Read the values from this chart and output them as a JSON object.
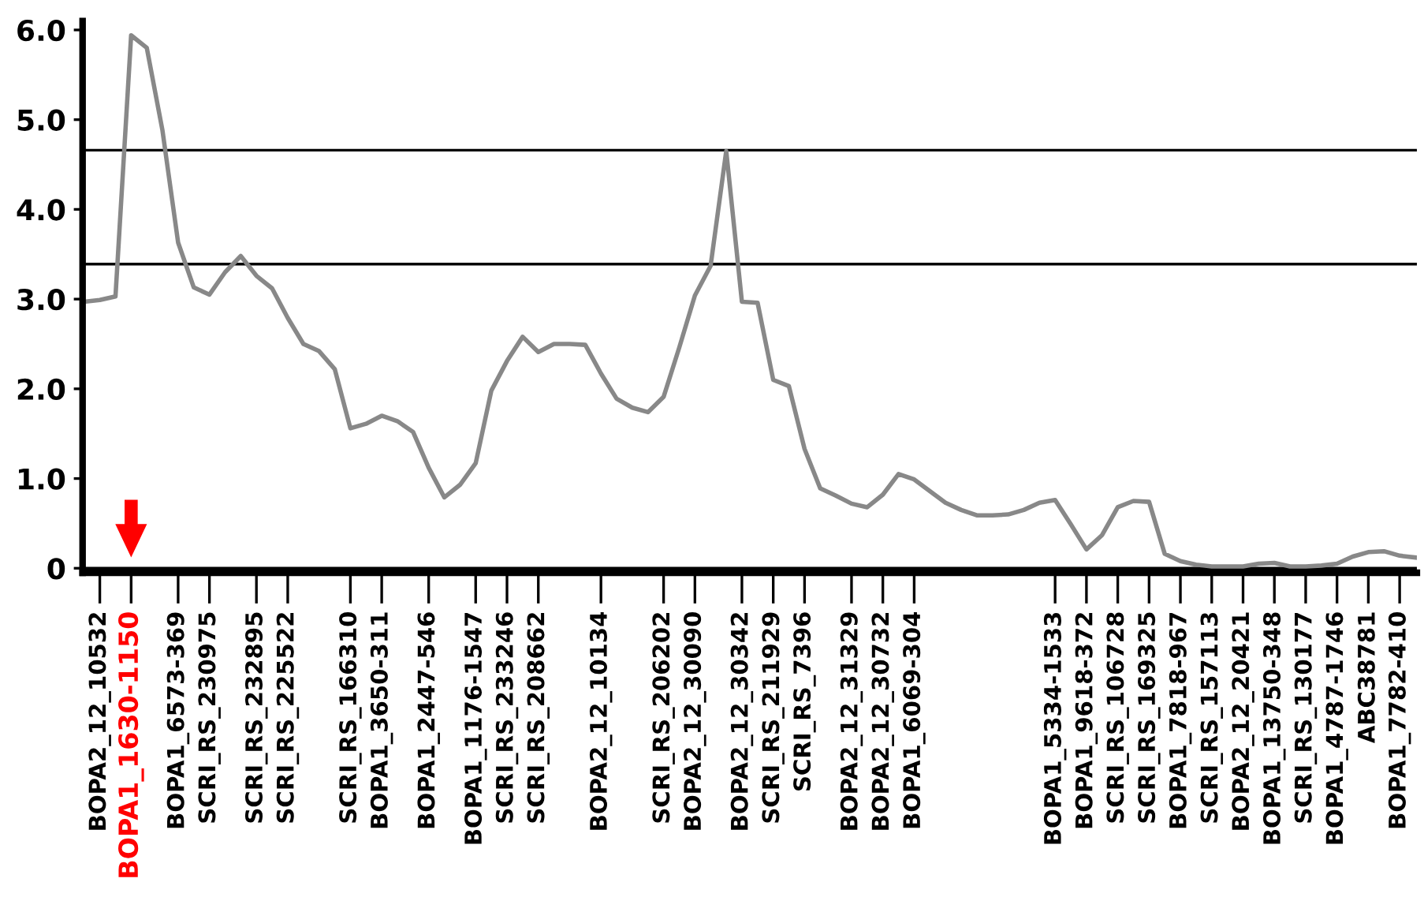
{
  "chart_data": {
    "type": "line",
    "categories": [
      null,
      "BOPA2_12_10532",
      null,
      "BOPA1_1630-1150",
      null,
      null,
      "BOPA1_6573-369",
      null,
      "SCRI_RS_230975",
      null,
      null,
      "SCRI_RS_232895",
      null,
      "SCRI_RS_225522",
      null,
      null,
      null,
      "SCRI_RS_166310",
      null,
      "BOPA1_3650-311",
      null,
      null,
      "BOPA1_2447-546",
      null,
      null,
      "BOPA1_1176-1547",
      null,
      "SCRI_RS_233246",
      null,
      "SCRI_RS_208662",
      null,
      null,
      null,
      "BOPA2_12_10134",
      null,
      null,
      null,
      "SCRI_RS_206202",
      null,
      "BOPA2_12_30090",
      null,
      null,
      "BOPA2_12_30342",
      null,
      "SCRI_RS_211929",
      null,
      "SCRI_RS_7396",
      null,
      null,
      "BOPA2_12_31329",
      null,
      "BOPA2_12_30732",
      null,
      "BOPA1_6069-304",
      null,
      null,
      null,
      null,
      null,
      null,
      null,
      null,
      "BOPA1_5334-1533",
      null,
      "BOPA1_9618-372",
      null,
      "SCRI_RS_106728",
      null,
      "SCRI_RS_169325",
      null,
      "BOPA1_7818-967",
      null,
      "SCRI_RS_157113",
      null,
      "BOPA2_12_20421",
      null,
      "BOPA1_13750-348",
      null,
      "SCRI_RS_130177",
      null,
      "BOPA1_4787-1746",
      null,
      "ABC38781",
      null,
      "BOPA1_7782-410",
      null
    ],
    "series": [
      {
        "color": "#888888",
        "values": [
          2.97,
          2.99,
          3.03,
          5.94,
          5.8,
          4.88,
          3.63,
          3.13,
          3.05,
          3.3,
          3.48,
          3.26,
          3.12,
          2.79,
          2.5,
          2.42,
          2.22,
          1.56,
          1.61,
          1.7,
          1.64,
          1.52,
          1.12,
          0.79,
          0.93,
          1.17,
          1.98,
          2.31,
          2.58,
          2.41,
          2.5,
          2.5,
          2.49,
          2.17,
          1.89,
          1.79,
          1.74,
          1.91,
          2.46,
          3.04,
          3.37,
          4.65,
          2.97,
          2.96,
          2.1,
          2.03,
          1.33,
          0.89,
          0.81,
          0.72,
          0.68,
          0.82,
          1.05,
          0.99,
          0.86,
          0.73,
          0.65,
          0.59,
          0.59,
          0.6,
          0.65,
          0.73,
          0.76,
          0.49,
          0.21,
          0.37,
          0.68,
          0.75,
          0.74,
          0.16,
          0.08,
          0.04,
          0.02,
          0.02,
          0.02,
          0.05,
          0.06,
          0.02,
          0.02,
          0.03,
          0.05,
          0.13,
          0.18,
          0.19,
          0.14,
          0.12
        ]
      }
    ],
    "ylim": [
      -0.05,
      6.1
    ],
    "yticks": [
      {
        "value": 0,
        "label": "0"
      },
      {
        "value": 1,
        "label": "1.0"
      },
      {
        "value": 2,
        "label": "2.0"
      },
      {
        "value": 3,
        "label": "3.0"
      },
      {
        "value": 4,
        "label": "4.0"
      },
      {
        "value": 5,
        "label": "5.0"
      },
      {
        "value": 6,
        "label": "6.0"
      }
    ],
    "ref_lines": [
      {
        "axis": "y",
        "value": 4.66,
        "color": "#000000"
      },
      {
        "axis": "y",
        "value": 3.39,
        "color": "#000000"
      },
      {
        "axis": "y",
        "value": 0.0,
        "color": "#000000"
      }
    ],
    "grid": false,
    "legend": false,
    "marker": "none",
    "line_style": "solid"
  }
}
